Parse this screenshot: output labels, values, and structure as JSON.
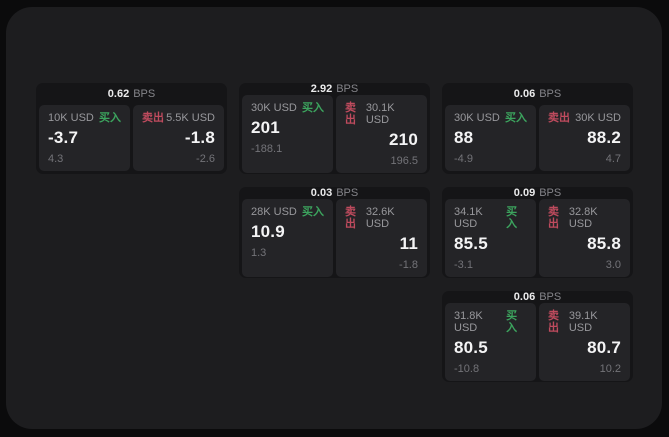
{
  "labels": {
    "bps": "BPS",
    "buy": "买入",
    "sell": "卖出"
  },
  "colors": {
    "page_bg": "#0b0b0c",
    "window_bg": "#1d1d1f",
    "card_bg": "#151517",
    "tile_bg": "#242427",
    "buy_green": "#3ca45e",
    "sell_red": "#bf4b5e",
    "primary_text": "#f4f4f5",
    "muted_text": "#98989c",
    "dim_text": "#737378"
  },
  "cards": [
    {
      "bps": "0.62",
      "buy": {
        "size": "10K USD",
        "value": "-3.7",
        "delta": "4.3"
      },
      "sell": {
        "size": "5.5K USD",
        "value": "-1.8",
        "delta": "-2.6"
      }
    },
    {
      "bps": "2.92",
      "buy": {
        "size": "30K USD",
        "value": "201",
        "delta": "-188.1"
      },
      "sell": {
        "size": "30.1K USD",
        "value": "210",
        "delta": "196.5"
      }
    },
    {
      "bps": "0.06",
      "buy": {
        "size": "30K USD",
        "value": "88",
        "delta": "-4.9"
      },
      "sell": {
        "size": "30K USD",
        "value": "88.2",
        "delta": "4.7"
      }
    },
    {
      "bps": "0.03",
      "buy": {
        "size": "28K USD",
        "value": "10.9",
        "delta": "1.3"
      },
      "sell": {
        "size": "32.6K USD",
        "value": "11",
        "delta": "-1.8"
      }
    },
    {
      "bps": "0.09",
      "buy": {
        "size": "34.1K USD",
        "value": "85.5",
        "delta": "-3.1"
      },
      "sell": {
        "size": "32.8K USD",
        "value": "85.8",
        "delta": "3.0"
      }
    },
    {
      "bps": "0.06",
      "buy": {
        "size": "31.8K USD",
        "value": "80.5",
        "delta": "-10.8"
      },
      "sell": {
        "size": "39.1K USD",
        "value": "80.7",
        "delta": "10.2"
      }
    }
  ]
}
